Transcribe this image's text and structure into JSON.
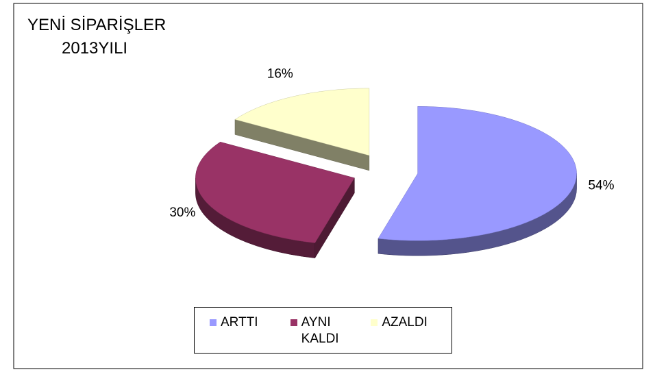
{
  "chart_data": {
    "type": "pie",
    "title": [
      "YENİ SİPARİŞLER",
      "2013YILI"
    ],
    "categories": [
      "ARTTI",
      "AYNI KALDI",
      "AZALDI"
    ],
    "values": [
      54,
      30,
      16
    ],
    "value_labels": [
      "54%",
      "30%",
      "16%"
    ],
    "colors": [
      "#9999ff",
      "#993366",
      "#ffffcc"
    ],
    "legend": "bottom"
  }
}
